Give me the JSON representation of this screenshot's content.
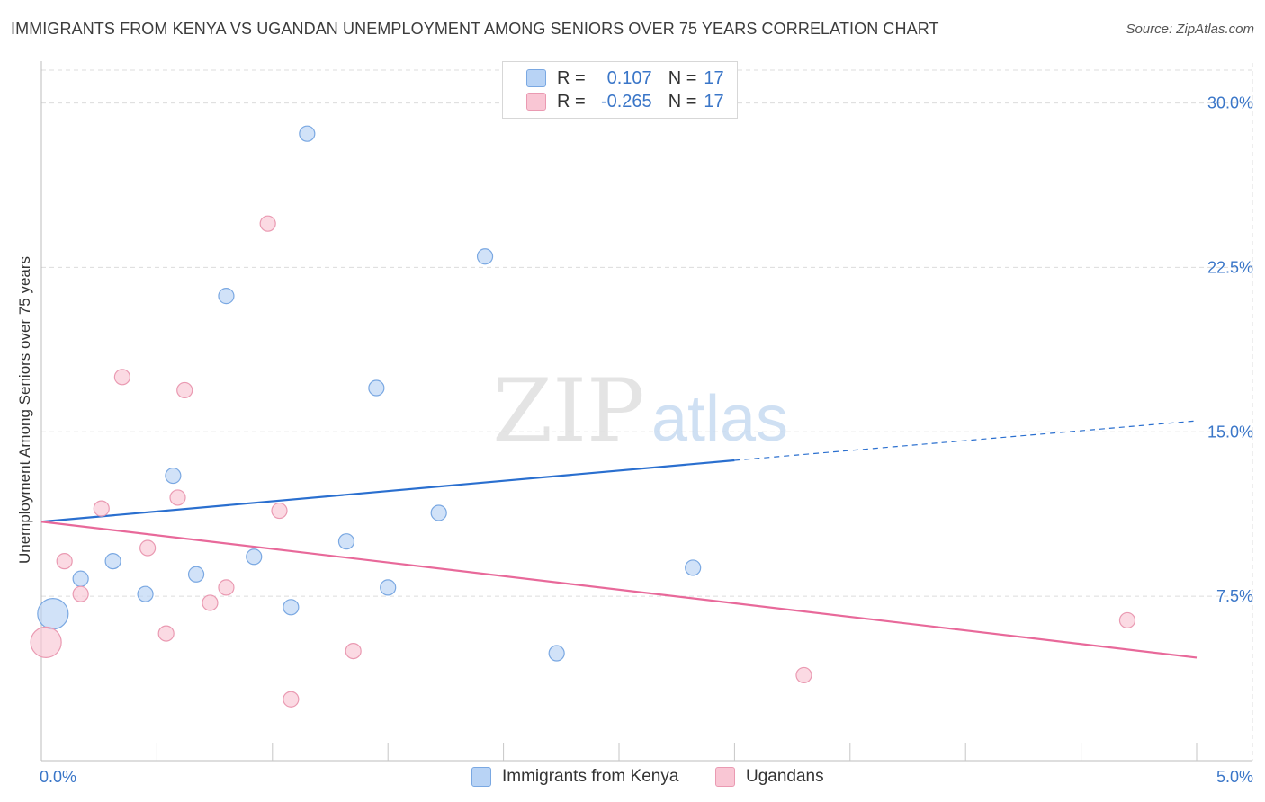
{
  "header": {
    "title": "IMMIGRANTS FROM KENYA VS UGANDAN UNEMPLOYMENT AMONG SENIORS OVER 75 YEARS CORRELATION CHART",
    "source": "Source: ZipAtlas.com"
  },
  "watermark": {
    "zip": "ZIP",
    "atlas": "atlas"
  },
  "legend": {
    "kenya": {
      "r_label": "R =",
      "r_value": "0.107",
      "n_label": "N =",
      "n_value": "17"
    },
    "ugandans": {
      "r_label": "R =",
      "r_value": "-0.265",
      "n_label": "N =",
      "n_value": "17"
    }
  },
  "colors": {
    "kenya_fill": "#b8d3f5",
    "kenya_stroke": "#7aa8e2",
    "kenya_line": "#2a6fcf",
    "ugandans_fill": "#f9c6d4",
    "ugandans_stroke": "#ea9ab2",
    "ugandans_line": "#e8699a",
    "grid": "#dcdcdc",
    "axis_label": "#3a76c8"
  },
  "chart_data": {
    "type": "scatter",
    "title": "IMMIGRANTS FROM KENYA VS UGANDAN UNEMPLOYMENT AMONG SENIORS OVER 75 YEARS CORRELATION CHART",
    "xlabel": "",
    "ylabel": "Unemployment Among Seniors over 75 years",
    "xlim": [
      0,
      5
    ],
    "ylim": [
      0,
      31.5
    ],
    "x_tick_labels": [
      "0.0%",
      "5.0%"
    ],
    "y_ticks": [
      7.5,
      15.0,
      22.5,
      30.0
    ],
    "y_tick_labels": [
      "7.5%",
      "15.0%",
      "22.5%",
      "30.0%"
    ],
    "series": [
      {
        "name": "Immigrants from Kenya",
        "points": [
          {
            "x": 0.05,
            "y": 6.7,
            "size": "large"
          },
          {
            "x": 0.17,
            "y": 8.3
          },
          {
            "x": 0.31,
            "y": 9.1
          },
          {
            "x": 0.45,
            "y": 7.6
          },
          {
            "x": 0.57,
            "y": 13.0
          },
          {
            "x": 0.67,
            "y": 8.5
          },
          {
            "x": 0.8,
            "y": 21.2
          },
          {
            "x": 0.92,
            "y": 9.3
          },
          {
            "x": 1.08,
            "y": 7.0
          },
          {
            "x": 1.15,
            "y": 28.6
          },
          {
            "x": 1.32,
            "y": 10.0
          },
          {
            "x": 1.45,
            "y": 17.0
          },
          {
            "x": 1.5,
            "y": 7.9
          },
          {
            "x": 1.72,
            "y": 11.3
          },
          {
            "x": 1.92,
            "y": 23.0
          },
          {
            "x": 2.23,
            "y": 4.9
          },
          {
            "x": 2.82,
            "y": 8.8
          }
        ],
        "trend": {
          "x_start": 0.0,
          "y_start": 10.9,
          "x_solid_end": 3.0,
          "y_solid_end": 13.7,
          "x_end": 5.0,
          "y_end": 15.5
        }
      },
      {
        "name": "Ugandans",
        "points": [
          {
            "x": 0.02,
            "y": 5.4,
            "size": "large"
          },
          {
            "x": 0.1,
            "y": 9.1
          },
          {
            "x": 0.17,
            "y": 7.6
          },
          {
            "x": 0.26,
            "y": 11.5
          },
          {
            "x": 0.35,
            "y": 17.5
          },
          {
            "x": 0.46,
            "y": 9.7
          },
          {
            "x": 0.54,
            "y": 5.8
          },
          {
            "x": 0.59,
            "y": 12.0
          },
          {
            "x": 0.62,
            "y": 16.9
          },
          {
            "x": 0.73,
            "y": 7.2
          },
          {
            "x": 0.8,
            "y": 7.9
          },
          {
            "x": 0.98,
            "y": 24.5
          },
          {
            "x": 1.03,
            "y": 11.4
          },
          {
            "x": 1.08,
            "y": 2.8
          },
          {
            "x": 1.35,
            "y": 5.0
          },
          {
            "x": 3.3,
            "y": 3.9
          },
          {
            "x": 4.7,
            "y": 6.4
          }
        ],
        "trend": {
          "x_start": 0.0,
          "y_start": 10.9,
          "x_end": 5.0,
          "y_end": 4.7
        }
      }
    ]
  }
}
